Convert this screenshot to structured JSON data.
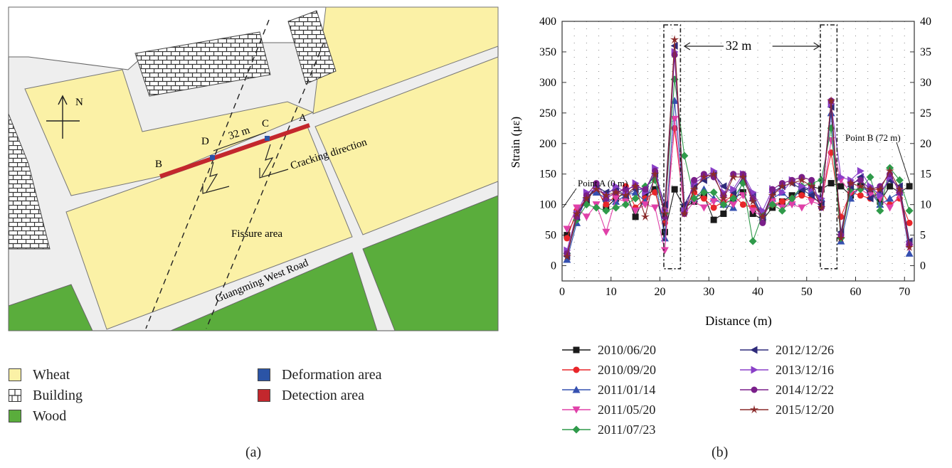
{
  "map": {
    "north_label": "N",
    "label_A": "A",
    "label_B": "B",
    "label_C": "C",
    "label_D": "D",
    "distance_label": "32 m",
    "cracking_label": "Cracking direction",
    "fissure_label": "Fissure area",
    "road_label": "Guangming West Road",
    "legend": [
      {
        "label": "Wheat",
        "color": "#fbf1a6",
        "pattern": "solid"
      },
      {
        "label": "Building",
        "color": "#ffffff",
        "pattern": "brick"
      },
      {
        "label": "Wood",
        "color": "#5aad3c",
        "pattern": "solid"
      },
      {
        "label": "Deformation area",
        "color": "#2b54a6",
        "pattern": "solid"
      },
      {
        "label": "Detection area",
        "color": "#c3272d",
        "pattern": "solid"
      }
    ],
    "caption": "(a)"
  },
  "chart_data": {
    "type": "line",
    "title": "",
    "xlabel": "Distance (m)",
    "ylabel": "Strain (με)",
    "xlim": [
      0,
      72
    ],
    "ylim": [
      -25,
      400
    ],
    "xticks": [
      0,
      10,
      20,
      30,
      40,
      50,
      60,
      70
    ],
    "yticks": [
      0,
      50,
      100,
      150,
      200,
      250,
      300,
      350,
      400
    ],
    "y2ticks": [
      0,
      5,
      10,
      15,
      20,
      25,
      30,
      35,
      40
    ],
    "grid": "dotted",
    "annotations": {
      "point_a": "Point A (0 m)",
      "point_b": "Point B (72 m)",
      "span": "32 m"
    },
    "x": [
      1,
      3,
      5,
      7,
      9,
      11,
      13,
      15,
      17,
      19,
      21,
      23,
      25,
      27,
      29,
      31,
      33,
      35,
      37,
      39,
      41,
      43,
      45,
      47,
      49,
      51,
      53,
      55,
      57,
      59,
      61,
      63,
      65,
      67,
      69,
      71
    ],
    "series": [
      {
        "name": "2010/06/20",
        "color": "#1a1a1a",
        "marker": "square",
        "values": [
          50,
          85,
          105,
          130,
          95,
          110,
          120,
          80,
          115,
          125,
          55,
          125,
          95,
          105,
          115,
          75,
          85,
          110,
          120,
          85,
          75,
          95,
          105,
          115,
          120,
          130,
          125,
          135,
          130,
          115,
          130,
          120,
          105,
          130,
          120,
          130
        ]
      },
      {
        "name": "2010/09/20",
        "color": "#e8262a",
        "marker": "circle",
        "values": [
          45,
          90,
          110,
          125,
          100,
          115,
          130,
          95,
          110,
          120,
          70,
          225,
          90,
          120,
          110,
          95,
          105,
          115,
          100,
          95,
          85,
          100,
          105,
          110,
          115,
          110,
          105,
          185,
          80,
          120,
          115,
          110,
          125,
          100,
          110,
          70
        ]
      },
      {
        "name": "2011/01/14",
        "color": "#3550b0",
        "marker": "triangle-up",
        "values": [
          10,
          70,
          115,
          120,
          110,
          105,
          115,
          120,
          105,
          145,
          45,
          270,
          95,
          110,
          125,
          110,
          100,
          95,
          140,
          110,
          80,
          110,
          120,
          105,
          130,
          120,
          110,
          250,
          40,
          110,
          130,
          120,
          100,
          110,
          120,
          20
        ]
      },
      {
        "name": "2011/05/20",
        "color": "#e040a8",
        "marker": "triangle-down",
        "values": [
          60,
          95,
          80,
          100,
          55,
          110,
          105,
          90,
          100,
          95,
          25,
          240,
          85,
          105,
          95,
          105,
          110,
          100,
          115,
          90,
          80,
          105,
          95,
          100,
          95,
          105,
          100,
          205,
          140,
          120,
          125,
          115,
          110,
          95,
          115,
          30
        ]
      },
      {
        "name": "2011/07/23",
        "color": "#2f9a4a",
        "marker": "diamond",
        "values": [
          20,
          75,
          100,
          95,
          90,
          95,
          100,
          110,
          130,
          140,
          85,
          305,
          180,
          110,
          120,
          120,
          100,
          110,
          135,
          40,
          85,
          100,
          90,
          110,
          130,
          135,
          140,
          225,
          45,
          125,
          125,
          145,
          90,
          160,
          140,
          90
        ]
      },
      {
        "name": "2012/12/26",
        "color": "#2e2a7a",
        "marker": "triangle-left",
        "values": [
          15,
          80,
          110,
          130,
          120,
          125,
          115,
          125,
          125,
          150,
          100,
          360,
          100,
          130,
          140,
          150,
          130,
          120,
          145,
          115,
          80,
          120,
          130,
          135,
          125,
          115,
          100,
          260,
          55,
          130,
          145,
          110,
          120,
          140,
          130,
          40
        ]
      },
      {
        "name": "2013/12/16",
        "color": "#8a3fc8",
        "marker": "triangle-right",
        "values": [
          25,
          85,
          120,
          125,
          115,
          130,
          120,
          135,
          120,
          160,
          90,
          350,
          90,
          135,
          145,
          155,
          120,
          125,
          150,
          120,
          90,
          125,
          120,
          140,
          130,
          125,
          110,
          265,
          145,
          140,
          155,
          130,
          115,
          145,
          125,
          35
        ]
      },
      {
        "name": "2014/12/22",
        "color": "#7a1f8a",
        "marker": "circle",
        "values": [
          20,
          80,
          115,
          135,
          110,
          120,
          125,
          130,
          125,
          155,
          80,
          345,
          85,
          140,
          150,
          145,
          115,
          150,
          150,
          110,
          70,
          125,
          135,
          140,
          145,
          140,
          95,
          270,
          50,
          135,
          140,
          125,
          130,
          150,
          120,
          35
        ]
      },
      {
        "name": "2015/12/20",
        "color": "#8a2a2a",
        "marker": "star",
        "values": [
          15,
          85,
          110,
          125,
          115,
          120,
          115,
          130,
          80,
          150,
          85,
          370,
          85,
          125,
          145,
          150,
          110,
          145,
          145,
          105,
          80,
          115,
          130,
          135,
          140,
          130,
          95,
          270,
          45,
          135,
          130,
          125,
          125,
          155,
          125,
          30
        ]
      }
    ],
    "caption": "(b)"
  }
}
